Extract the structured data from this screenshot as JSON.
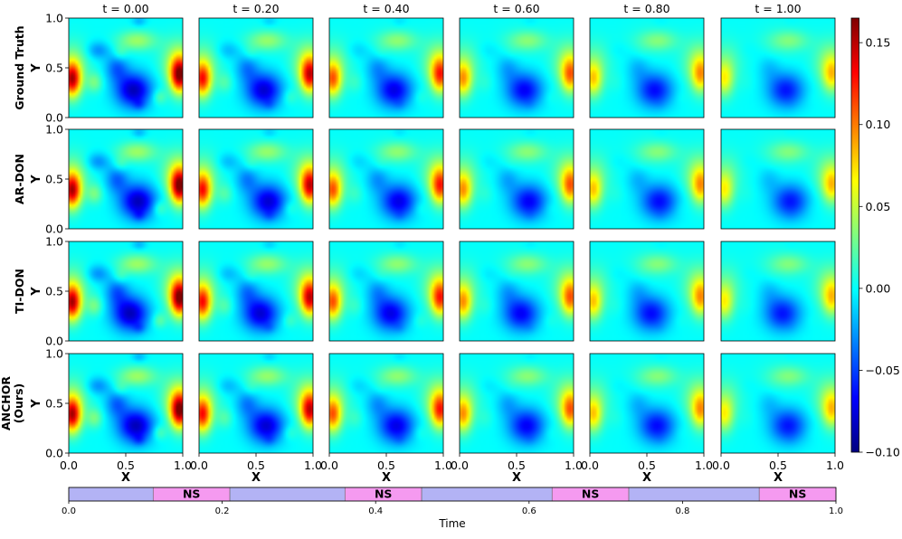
{
  "chart_data": {
    "type": "heatmap",
    "colormap": "jet",
    "colorbar": {
      "vmin": -0.1,
      "vmax": 0.165,
      "ticks": [
        "0.15",
        "0.10",
        "0.05",
        "0.00",
        "−0.05",
        "−0.10"
      ],
      "tick_values": [
        0.15,
        0.1,
        0.05,
        0.0,
        -0.05,
        -0.1
      ]
    },
    "time_titles": [
      "t = 0.00",
      "t = 0.20",
      "t = 0.40",
      "t = 0.60",
      "t = 0.80",
      "t = 1.00"
    ],
    "time_values": [
      0.0,
      0.2,
      0.4,
      0.6,
      0.8,
      1.0
    ],
    "row_labels": [
      [
        "Ground Truth"
      ],
      [
        "AR-DON"
      ],
      [
        "TI-DON"
      ],
      [
        "ANCHOR",
        "(Ours)"
      ]
    ],
    "x_ticks": [
      "0.0",
      "0.5",
      "1.0"
    ],
    "y_ticks": [
      "1.0",
      "0.5",
      "0.0"
    ],
    "xlabel": "X",
    "ylabel": "Y",
    "xlim": [
      0,
      1
    ],
    "ylim": [
      0,
      1
    ]
  },
  "timeline": {
    "xlabel": "Time",
    "xlim": [
      0,
      1
    ],
    "ticks": [
      "0.0",
      "0.2",
      "0.4",
      "0.6",
      "0.8",
      "1.0"
    ],
    "tick_values": [
      0,
      0.2,
      0.4,
      0.6,
      0.8,
      1.0
    ],
    "segments": [
      {
        "start": 0.0,
        "end": 0.11,
        "label": "",
        "color": "#b3b3f5"
      },
      {
        "start": 0.11,
        "end": 0.21,
        "label": "NS",
        "color": "#f59af0"
      },
      {
        "start": 0.21,
        "end": 0.36,
        "label": "",
        "color": "#b3b3f5"
      },
      {
        "start": 0.36,
        "end": 0.46,
        "label": "NS",
        "color": "#f59af0"
      },
      {
        "start": 0.46,
        "end": 0.63,
        "label": "",
        "color": "#b3b3f5"
      },
      {
        "start": 0.63,
        "end": 0.73,
        "label": "NS",
        "color": "#f59af0"
      },
      {
        "start": 0.73,
        "end": 0.9,
        "label": "",
        "color": "#b3b3f5"
      },
      {
        "start": 0.9,
        "end": 1.0,
        "label": "NS",
        "color": "#f59af0"
      }
    ]
  }
}
